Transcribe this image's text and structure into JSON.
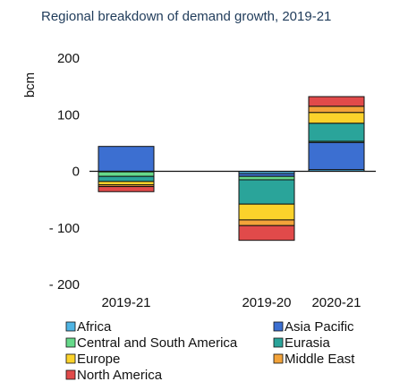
{
  "chart_data": {
    "type": "bar",
    "stacked": true,
    "title": "Regional breakdown of demand growth, 2019-21",
    "ylabel": "bcm",
    "ylim": [
      -200,
      200
    ],
    "yticks": [
      200,
      100,
      0,
      -100,
      -200
    ],
    "ytick_labels": [
      "200",
      "100",
      "0",
      "- 100",
      "- 200"
    ],
    "categories": [
      "2019-21",
      "2019-20",
      "2020-21"
    ],
    "series": [
      {
        "name": "Africa",
        "color": "#4fb4e3",
        "values": [
          -1,
          -4,
          3
        ]
      },
      {
        "name": "Asia Pacific",
        "color": "#3c6fd1",
        "values": [
          44,
          -5,
          48
        ]
      },
      {
        "name": "Central and South America",
        "color": "#66d98a",
        "values": [
          -8,
          -6,
          2
        ]
      },
      {
        "name": "Eurasia",
        "color": "#2aa49a",
        "values": [
          -9,
          -43,
          32
        ]
      },
      {
        "name": "Europe",
        "color": "#fbd22b",
        "values": [
          -6,
          -28,
          19
        ]
      },
      {
        "name": "Middle East",
        "color": "#f3a33a",
        "values": [
          -3,
          -10,
          11
        ]
      },
      {
        "name": "North America",
        "color": "#e14a4a",
        "values": [
          -9,
          -26,
          17
        ]
      }
    ],
    "grid": false,
    "legend_position": "bottom"
  }
}
